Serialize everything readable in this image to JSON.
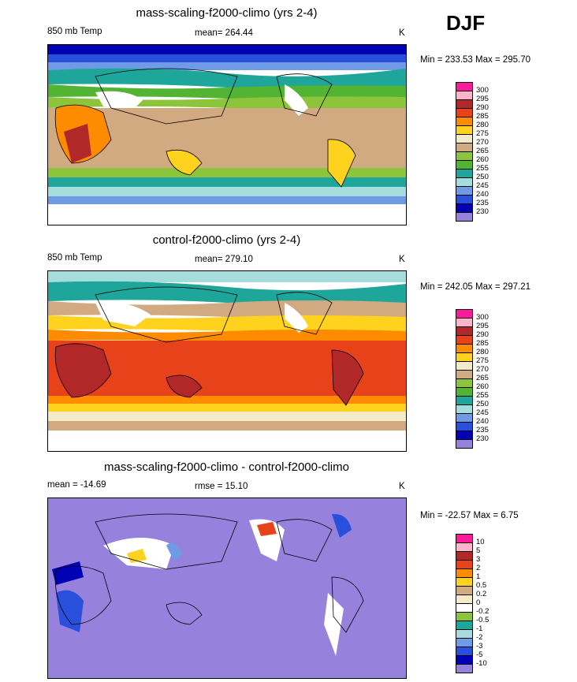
{
  "season": "DJF",
  "panels": [
    {
      "title": "mass-scaling-f2000-climo (yrs 2-4)",
      "left_label": "850 mb Temp",
      "center_label": "mean= 264.44",
      "units": "K",
      "minmax": "Min = 233.53 Max = 295.70",
      "colorbar_labels": [
        "300",
        "295",
        "290",
        "285",
        "280",
        "275",
        "270",
        "265",
        "260",
        "255",
        "250",
        "245",
        "240",
        "235",
        "230"
      ],
      "colorbar_colors": [
        "#ff1a9a",
        "#ffb6c8",
        "#b22828",
        "#e8421a",
        "#ff8c00",
        "#ffd21e",
        "#f5ebc8",
        "#d2aa82",
        "#8cc43c",
        "#52b432",
        "#1fa69a",
        "#a6dcdc",
        "#6e9ae6",
        "#2850dc",
        "#0000b4",
        "#9682dc"
      ]
    },
    {
      "title": "control-f2000-climo (yrs 2-4)",
      "left_label": "850 mb Temp",
      "center_label": "mean= 279.10",
      "units": "K",
      "minmax": "Min = 242.05 Max = 297.21",
      "colorbar_labels": [
        "300",
        "295",
        "290",
        "285",
        "280",
        "275",
        "270",
        "265",
        "260",
        "255",
        "250",
        "245",
        "240",
        "235",
        "230"
      ],
      "colorbar_colors": [
        "#ff1a9a",
        "#ffb6c8",
        "#b22828",
        "#e8421a",
        "#ff8c00",
        "#ffd21e",
        "#f5ebc8",
        "#d2aa82",
        "#8cc43c",
        "#52b432",
        "#1fa69a",
        "#a6dcdc",
        "#6e9ae6",
        "#2850dc",
        "#0000b4",
        "#9682dc"
      ]
    },
    {
      "title": "mass-scaling-f2000-climo - control-f2000-climo",
      "left_label": "mean = -14.69",
      "center_label": "rmse =  15.10",
      "units": "K",
      "minmax": "Min = -22.57 Max =   6.75",
      "colorbar_labels": [
        "10",
        "5",
        "3",
        "2",
        "1",
        "0.5",
        "0.2",
        "0",
        "-0.2",
        "-0.5",
        "-1",
        "-2",
        "-3",
        "-5",
        "-10"
      ],
      "colorbar_colors": [
        "#ff1a9a",
        "#ffb6c8",
        "#b22828",
        "#e8421a",
        "#ff8c00",
        "#ffd21e",
        "#d2aa82",
        "#f5ebc8",
        "#ffffff",
        "#8cc43c",
        "#1fa69a",
        "#a6dcdc",
        "#6e9ae6",
        "#2850dc",
        "#0000b4",
        "#9682dc"
      ]
    }
  ]
}
